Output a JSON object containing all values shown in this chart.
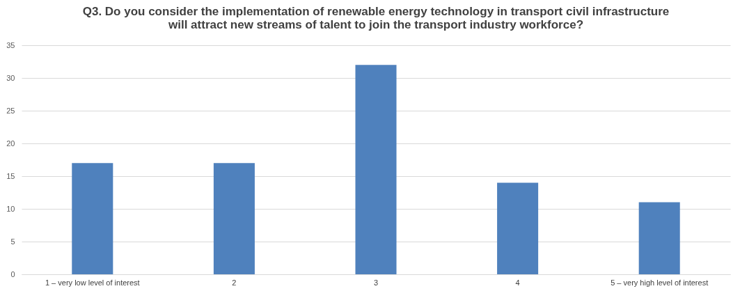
{
  "chart_data": {
    "type": "bar",
    "title": "Q3. Do you consider the implementation of renewable energy technology in transport civil infrastructure\nwill attract new streams of talent to join the transport industry workforce?",
    "categories": [
      "1 – very low level of interest",
      "2",
      "3",
      "4",
      "5 – very high level of interest"
    ],
    "values": [
      17,
      17,
      32,
      14,
      11
    ],
    "color": "#4f81bd",
    "ylim": [
      0,
      35
    ],
    "yticks": [
      0,
      5,
      10,
      15,
      20,
      25,
      30,
      35
    ],
    "grid": "y"
  }
}
